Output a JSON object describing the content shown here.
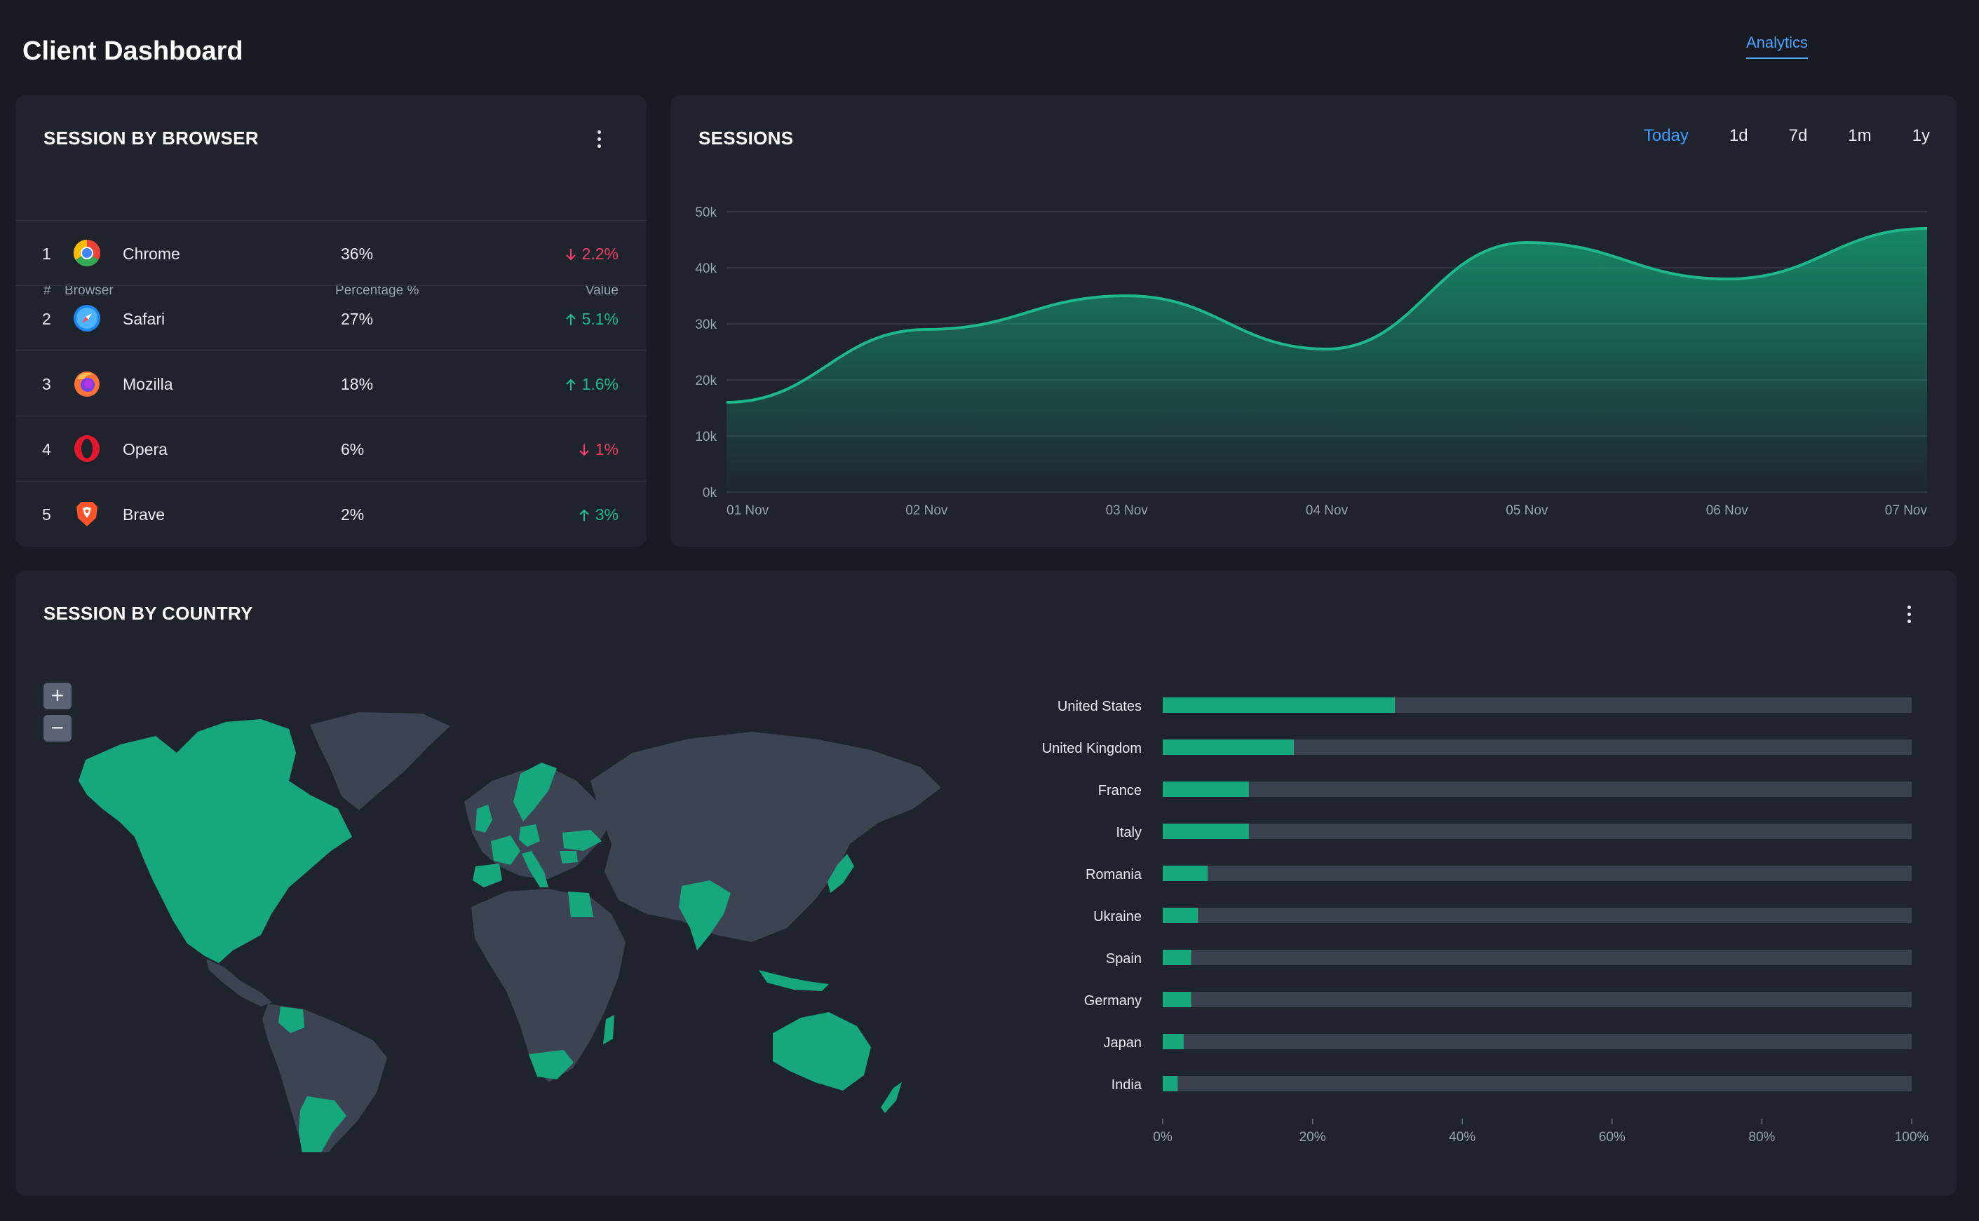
{
  "header": {
    "title": "Client Dashboard",
    "nav_link": "Analytics"
  },
  "colors": {
    "accent": "#1fb88a",
    "up": "#1fb88a",
    "down": "#ee3d64",
    "link": "#4aa3ff",
    "map_land": "#3c4352",
    "map_highlight": "#16a87c",
    "bar_track": "#3b414e"
  },
  "browser_card": {
    "title": "SESSION BY BROWSER",
    "columns": {
      "num": "#",
      "browser": "Browser",
      "percentage": "Percentage %",
      "value": "Value"
    },
    "rows": [
      {
        "num": "1",
        "icon": "chrome-icon",
        "name": "Chrome",
        "pct": "36%",
        "value": "2.2%",
        "trend": "down"
      },
      {
        "num": "2",
        "icon": "safari-icon",
        "name": "Safari",
        "pct": "27%",
        "value": "5.1%",
        "trend": "up"
      },
      {
        "num": "3",
        "icon": "firefox-icon",
        "name": "Mozilla",
        "pct": "18%",
        "value": "1.6%",
        "trend": "up"
      },
      {
        "num": "4",
        "icon": "opera-icon",
        "name": "Opera",
        "pct": "6%",
        "value": "1%",
        "trend": "down"
      },
      {
        "num": "5",
        "icon": "brave-icon",
        "name": "Brave",
        "pct": "2%",
        "value": "3%",
        "trend": "up"
      }
    ]
  },
  "sessions_card": {
    "title": "SESSIONS",
    "ranges": [
      "Today",
      "1d",
      "7d",
      "1m",
      "1y"
    ],
    "active_range": "Today"
  },
  "country_card": {
    "title": "SESSION BY COUNTRY",
    "zoom_in": "+",
    "zoom_out": "−"
  },
  "chart_data": [
    {
      "type": "area",
      "title": "SESSIONS",
      "x": [
        "01 Nov",
        "02 Nov",
        "03 Nov",
        "04 Nov",
        "05 Nov",
        "06 Nov",
        "07 Nov"
      ],
      "series": [
        {
          "values": [
            16000,
            29000,
            35000,
            25500,
            44500,
            38000,
            47000
          ]
        }
      ],
      "ylim": [
        0,
        50000
      ],
      "yticks": [
        "0k",
        "10k",
        "20k",
        "30k",
        "40k",
        "50k"
      ],
      "grid": true
    },
    {
      "type": "bar",
      "orientation": "horizontal",
      "categories": [
        "United States",
        "United Kingdom",
        "France",
        "Italy",
        "Romania",
        "Ukraine",
        "Spain",
        "Germany",
        "Japan",
        "India"
      ],
      "values": [
        31,
        17.5,
        11.5,
        11.5,
        6,
        4.7,
        3.8,
        3.8,
        2.8,
        2
      ],
      "xlim": [
        0,
        100
      ],
      "xticks": [
        "0%",
        "20%",
        "40%",
        "60%",
        "80%",
        "100%"
      ]
    }
  ]
}
